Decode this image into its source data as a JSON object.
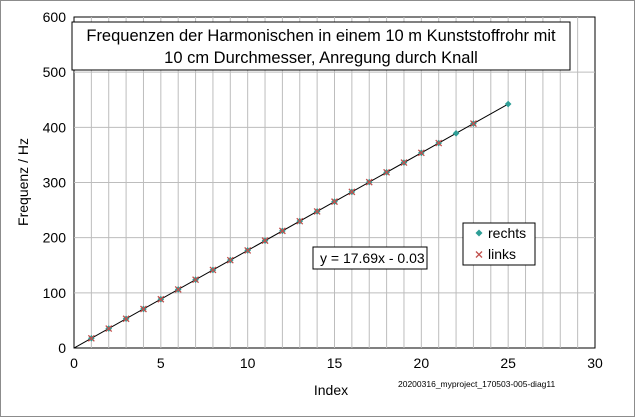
{
  "chart_data": {
    "type": "scatter",
    "title_lines": [
      "Frequenzen der Harmonischen in einem 10 m Kunststoffrohr mit",
      "10 cm Durchmesser, Anregung durch Knall"
    ],
    "xlabel": "Index",
    "ylabel": "Frequenz / Hz",
    "xlim": [
      0,
      30
    ],
    "ylim": [
      0,
      600
    ],
    "x_ticks": [
      0,
      5,
      10,
      15,
      20,
      25,
      30
    ],
    "y_ticks": [
      0,
      100,
      200,
      300,
      400,
      500,
      600
    ],
    "x_minor_step": 1,
    "grid": true,
    "legend_position": "right",
    "series": [
      {
        "name": "rechts",
        "marker": "diamond",
        "color": "#2e9e96",
        "x": [
          1,
          2,
          3,
          4,
          5,
          6,
          7,
          8,
          9,
          10,
          11,
          12,
          13,
          14,
          15,
          16,
          17,
          18,
          19,
          20,
          21,
          22,
          23,
          25
        ],
        "y": [
          17.6,
          35.3,
          53.0,
          70.7,
          88.4,
          106.1,
          123.8,
          141.5,
          159.2,
          176.9,
          194.6,
          212.3,
          229.9,
          247.6,
          265.3,
          283.0,
          300.7,
          318.4,
          336.1,
          353.8,
          371.5,
          389.1,
          406.8,
          442.2
        ]
      },
      {
        "name": "links",
        "marker": "x",
        "color": "#c0504d",
        "x": [
          1,
          2,
          3,
          4,
          5,
          6,
          7,
          8,
          9,
          10,
          11,
          12,
          13,
          14,
          15,
          16,
          17,
          18,
          19,
          20,
          21,
          23
        ],
        "y": [
          17.6,
          35.3,
          53.0,
          70.7,
          88.4,
          106.1,
          123.8,
          141.5,
          159.2,
          176.9,
          194.6,
          212.3,
          229.9,
          247.6,
          265.3,
          283.0,
          300.7,
          318.4,
          336.1,
          353.8,
          371.5,
          406.8
        ]
      }
    ],
    "trendline": {
      "slope": 17.69,
      "intercept": -0.03,
      "x_range": [
        0,
        25
      ],
      "label": "y = 17.69x - 0.03"
    },
    "footer": "20200316_myproject_170503-005-diag11"
  }
}
